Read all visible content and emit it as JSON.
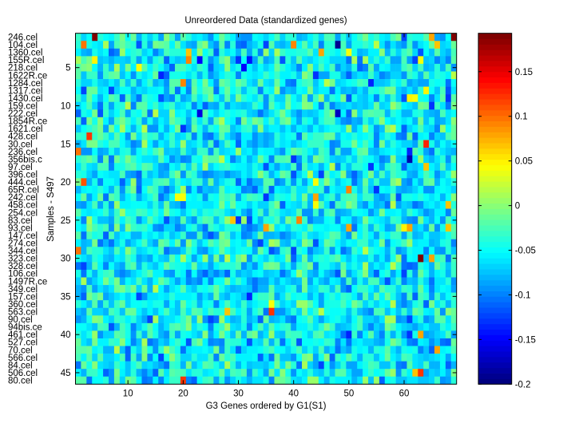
{
  "chart_data": {
    "type": "heatmap",
    "title": "Unreordered Data (standardized genes)",
    "xlabel": "G3 Genes ordered by G1(S1)",
    "ylabel": "Samples - S497",
    "n_rows": 46,
    "n_cols": 69,
    "row_labels": [
      "246.cel",
      "104.cel",
      "1360.cel",
      "155R.cel",
      "218.cel",
      "1622R.ce",
      "1284.cel",
      "1317.cel",
      "1430.cel",
      "159.cel",
      "222.cel",
      "1854R.ce",
      "1621.cel",
      "428.cel",
      "30.cel",
      "236.cel",
      "356bis.c",
      "97.cel",
      "396.cel",
      "444.cel",
      "65R.cel",
      "242.cel",
      "458.cel",
      "254.cel",
      "83.cel",
      "93.cel",
      "147.cel",
      "274.cel",
      "344.cel",
      "323.cel",
      "328.cel",
      "106.cel",
      "1497R.ce",
      "349.cel",
      "157.cel",
      "360.cel",
      "563.cel",
      "90.cel",
      "94bis.ce",
      "461.cel",
      "527.cel",
      "70.cel",
      "566.cel",
      "84.cel",
      "506.cel",
      "80.cel"
    ],
    "xticks": [
      "10",
      "20",
      "30",
      "40",
      "50",
      "60"
    ],
    "xtick_values": [
      10,
      20,
      30,
      40,
      50,
      60
    ],
    "yticks": [
      "5",
      "10",
      "15",
      "20",
      "25",
      "30",
      "35",
      "40",
      "45"
    ],
    "ytick_values": [
      5,
      10,
      15,
      20,
      25,
      30,
      35,
      40,
      45
    ],
    "colorbar": {
      "range": [
        -0.2,
        0.193
      ],
      "ticks": [
        "0.15",
        "0.1",
        "0.05",
        "0",
        "-0.05",
        "-0.1",
        "-0.15",
        "-0.2"
      ],
      "tick_values": [
        0.15,
        0.1,
        0.05,
        0,
        -0.05,
        -0.1,
        -0.15,
        -0.2
      ],
      "colormap": "jet"
    },
    "background_mean": -0.055,
    "background_spread": 0.028,
    "notable_cells_row_col_value": [
      [
        1,
        4,
        0.19
      ],
      [
        1,
        69,
        0.19
      ],
      [
        1,
        65,
        0.08
      ],
      [
        2,
        2,
        0.1
      ],
      [
        2,
        40,
        0.09
      ],
      [
        2,
        48,
        -0.19
      ],
      [
        2,
        66,
        0.07
      ],
      [
        3,
        21,
        0.07
      ],
      [
        3,
        45,
        0.08
      ],
      [
        3,
        50,
        0.04
      ],
      [
        4,
        4,
        0.05
      ],
      [
        4,
        21,
        0.09
      ],
      [
        4,
        23,
        -0.15
      ],
      [
        4,
        63,
        0.04
      ],
      [
        5,
        12,
        0.04
      ],
      [
        5,
        31,
        -0.15
      ],
      [
        7,
        20,
        0.09
      ],
      [
        8,
        64,
        0.05
      ],
      [
        9,
        61,
        0.05
      ],
      [
        9,
        62,
        0.04
      ],
      [
        11,
        23,
        -0.16
      ],
      [
        11,
        48,
        -0.17
      ],
      [
        13,
        20,
        -0.13
      ],
      [
        14,
        3,
        0.12
      ],
      [
        15,
        64,
        0.13
      ],
      [
        16,
        1,
        0.1
      ],
      [
        17,
        61,
        -0.18
      ],
      [
        18,
        64,
        0.07
      ],
      [
        20,
        2,
        0.11
      ],
      [
        20,
        44,
        0.04
      ],
      [
        21,
        50,
        0.09
      ],
      [
        22,
        19,
        0.04
      ],
      [
        22,
        20,
        0.04
      ],
      [
        22,
        44,
        0.08
      ],
      [
        23,
        68,
        0.07
      ],
      [
        23,
        44,
        0.04
      ],
      [
        25,
        29,
        0.07
      ],
      [
        25,
        41,
        0.09
      ],
      [
        26,
        35,
        0.08
      ],
      [
        26,
        50,
        0.08
      ],
      [
        26,
        60,
        0.05
      ],
      [
        26,
        61,
        0.08
      ],
      [
        26,
        68,
        0.07
      ],
      [
        29,
        1,
        0.1
      ],
      [
        30,
        63,
        0.19
      ],
      [
        30,
        65,
        0.08
      ],
      [
        36,
        36,
        0.04
      ],
      [
        37,
        36,
        0.12
      ],
      [
        37,
        28,
        0.07
      ],
      [
        40,
        63,
        0.08
      ],
      [
        42,
        66,
        0.08
      ],
      [
        45,
        62,
        0.07
      ],
      [
        45,
        63,
        0.12
      ],
      [
        46,
        20,
        0.12
      ]
    ]
  }
}
